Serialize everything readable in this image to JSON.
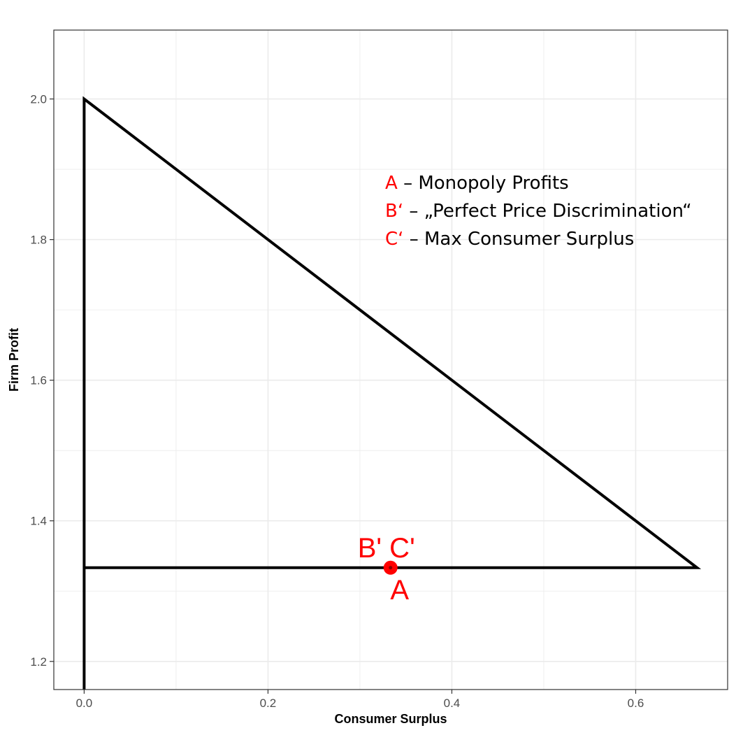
{
  "chart_data": {
    "type": "line",
    "xlabel": "Consumer Surplus",
    "ylabel": "Firm Profit",
    "xlim": [
      -0.033,
      0.7
    ],
    "ylim": [
      1.16,
      2.098
    ],
    "x_ticks": [
      0.0,
      0.2,
      0.4,
      0.6
    ],
    "x_tick_labels": [
      "0.0",
      "0.2",
      "0.4",
      "0.6"
    ],
    "y_ticks": [
      1.2,
      1.4,
      1.6,
      1.8,
      2.0
    ],
    "y_tick_labels": [
      "1.2",
      "1.4",
      "1.6",
      "1.8",
      "2.0"
    ],
    "grid": true,
    "series": [
      {
        "x": [
          0.0,
          0.0,
          0.6667,
          0.0
        ],
        "y": [
          1.16,
          2.0,
          1.3333,
          1.3333
        ]
      }
    ],
    "points": [
      {
        "x": 0.3333,
        "y": 1.3333,
        "color": "#ff0000"
      }
    ],
    "point_labels": [
      {
        "text": "B' C'",
        "x": 0.3333,
        "y": 1.3333,
        "position": "above"
      },
      {
        "text": "A",
        "x": 0.3333,
        "y": 1.3333,
        "position": "below"
      }
    ],
    "annotations": [
      {
        "key": "A",
        "text": "– Monopoly Profits"
      },
      {
        "key": "B‘",
        "text": "– „Perfect Price Discrimination“"
      },
      {
        "key": "C‘",
        "text": "– Max Consumer Surplus"
      }
    ],
    "colors": {
      "line": "#000000",
      "accent": "#ff0000",
      "grid": "#ebebeb",
      "text": "#000000"
    }
  }
}
